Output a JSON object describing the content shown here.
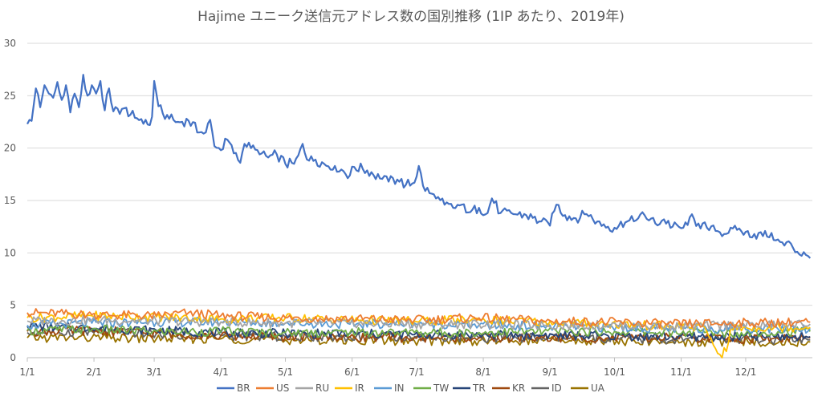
{
  "chart_data": {
    "type": "line",
    "title": "Hajime ユニーク送信元アドレス数の国別推移 (1IP あたり、2019年)",
    "xlabel": "",
    "ylabel": "",
    "ylim": [
      0,
      30
    ],
    "yticks": [
      0,
      5,
      10,
      15,
      20,
      25,
      30
    ],
    "xlim_days": [
      0,
      365
    ],
    "xticks": [
      {
        "label": "1/1",
        "day": 0
      },
      {
        "label": "2/1",
        "day": 31
      },
      {
        "label": "3/1",
        "day": 59
      },
      {
        "label": "4/1",
        "day": 90
      },
      {
        "label": "5/1",
        "day": 120
      },
      {
        "label": "6/1",
        "day": 151
      },
      {
        "label": "7/1",
        "day": 181
      },
      {
        "label": "8/1",
        "day": 212
      },
      {
        "label": "9/1",
        "day": 243
      },
      {
        "label": "10/1",
        "day": 273
      },
      {
        "label": "11/1",
        "day": 304
      },
      {
        "label": "12/1",
        "day": 334
      }
    ],
    "grid": true,
    "legend_position": "bottom",
    "series": [
      {
        "name": "BR",
        "color": "#4472C4",
        "keypoints": [
          [
            0,
            22.3
          ],
          [
            2,
            22.6
          ],
          [
            4,
            25.7
          ],
          [
            6,
            23.9
          ],
          [
            8,
            26.0
          ],
          [
            10,
            25.2
          ],
          [
            12,
            24.8
          ],
          [
            14,
            26.3
          ],
          [
            16,
            24.6
          ],
          [
            18,
            26.0
          ],
          [
            20,
            23.4
          ],
          [
            22,
            25.2
          ],
          [
            24,
            23.9
          ],
          [
            26,
            27.0
          ],
          [
            28,
            25.0
          ],
          [
            30,
            26.0
          ],
          [
            32,
            25.2
          ],
          [
            34,
            26.4
          ],
          [
            36,
            23.6
          ],
          [
            38,
            25.7
          ],
          [
            40,
            23.5
          ],
          [
            45,
            23.8
          ],
          [
            50,
            22.9
          ],
          [
            55,
            22.7
          ],
          [
            57,
            22.2
          ],
          [
            58,
            23.0
          ],
          [
            59,
            26.4
          ],
          [
            61,
            24.0
          ],
          [
            63,
            23.3
          ],
          [
            66,
            22.8
          ],
          [
            70,
            22.5
          ],
          [
            75,
            22.6
          ],
          [
            80,
            21.5
          ],
          [
            83,
            21.5
          ],
          [
            85,
            22.7
          ],
          [
            87,
            20.2
          ],
          [
            90,
            19.8
          ],
          [
            93,
            20.8
          ],
          [
            96,
            19.5
          ],
          [
            99,
            18.6
          ],
          [
            101,
            20.4
          ],
          [
            104,
            20.0
          ],
          [
            108,
            19.4
          ],
          [
            112,
            19.1
          ],
          [
            116,
            19.4
          ],
          [
            120,
            18.5
          ],
          [
            124,
            18.5
          ],
          [
            126,
            19.3
          ],
          [
            128,
            20.4
          ],
          [
            131,
            18.8
          ],
          [
            134,
            18.9
          ],
          [
            138,
            18.5
          ],
          [
            143,
            18.3
          ],
          [
            147,
            17.8
          ],
          [
            150,
            17.4
          ],
          [
            152,
            18.2
          ],
          [
            156,
            18.0
          ],
          [
            160,
            17.7
          ],
          [
            164,
            17.1
          ],
          [
            168,
            16.8
          ],
          [
            172,
            17.0
          ],
          [
            176,
            16.5
          ],
          [
            180,
            16.7
          ],
          [
            182,
            18.3
          ],
          [
            184,
            16.4
          ],
          [
            187,
            15.7
          ],
          [
            190,
            15.2
          ],
          [
            194,
            14.6
          ],
          [
            198,
            14.3
          ],
          [
            202,
            14.6
          ],
          [
            206,
            13.9
          ],
          [
            210,
            14.3
          ],
          [
            214,
            13.8
          ],
          [
            216,
            15.2
          ],
          [
            220,
            13.8
          ],
          [
            226,
            13.7
          ],
          [
            232,
            13.6
          ],
          [
            238,
            13.0
          ],
          [
            243,
            12.6
          ],
          [
            246,
            14.6
          ],
          [
            250,
            13.6
          ],
          [
            255,
            13.3
          ],
          [
            260,
            13.7
          ],
          [
            265,
            13.0
          ],
          [
            270,
            12.5
          ],
          [
            273,
            12.4
          ],
          [
            278,
            12.9
          ],
          [
            283,
            13.1
          ],
          [
            287,
            13.6
          ],
          [
            292,
            12.8
          ],
          [
            296,
            13.2
          ],
          [
            300,
            12.5
          ],
          [
            305,
            12.4
          ],
          [
            308,
            13.4
          ],
          [
            312,
            12.8
          ],
          [
            316,
            12.4
          ],
          [
            320,
            12.1
          ],
          [
            326,
            11.9
          ],
          [
            330,
            12.2
          ],
          [
            334,
            12.0
          ],
          [
            338,
            11.8
          ],
          [
            342,
            11.6
          ],
          [
            346,
            11.9
          ],
          [
            348,
            11.2
          ],
          [
            352,
            10.7
          ],
          [
            355,
            10.9
          ],
          [
            358,
            10.1
          ],
          [
            362,
            9.8
          ],
          [
            364,
            9.5
          ]
        ]
      },
      {
        "name": "US",
        "color": "#ED7D31",
        "keypoints": [
          [
            0,
            4.3
          ],
          [
            30,
            4.1
          ],
          [
            60,
            4.0
          ],
          [
            75,
            4.3
          ],
          [
            90,
            4.0
          ],
          [
            120,
            3.8
          ],
          [
            150,
            3.7
          ],
          [
            180,
            3.6
          ],
          [
            210,
            3.8
          ],
          [
            240,
            3.5
          ],
          [
            270,
            3.4
          ],
          [
            300,
            3.2
          ],
          [
            330,
            3.3
          ],
          [
            364,
            3.4
          ]
        ]
      },
      {
        "name": "RU",
        "color": "#A5A5A5",
        "keypoints": [
          [
            0,
            3.5
          ],
          [
            30,
            3.6
          ],
          [
            60,
            3.5
          ],
          [
            90,
            3.4
          ],
          [
            120,
            3.3
          ],
          [
            150,
            3.3
          ],
          [
            180,
            3.2
          ],
          [
            210,
            3.2
          ],
          [
            240,
            3.1
          ],
          [
            270,
            3.1
          ],
          [
            300,
            3.0
          ],
          [
            330,
            3.1
          ],
          [
            364,
            3.2
          ]
        ]
      },
      {
        "name": "IR",
        "color": "#FFC000",
        "keypoints": [
          [
            0,
            3.8
          ],
          [
            30,
            4.0
          ],
          [
            60,
            3.9
          ],
          [
            90,
            3.7
          ],
          [
            120,
            3.8
          ],
          [
            150,
            3.6
          ],
          [
            180,
            3.5
          ],
          [
            210,
            3.6
          ],
          [
            240,
            3.4
          ],
          [
            270,
            3.2
          ],
          [
            300,
            3.0
          ],
          [
            315,
            2.9
          ],
          [
            319,
            1.2
          ],
          [
            322,
            0.3
          ],
          [
            325,
            0.6
          ],
          [
            327,
            2.8
          ],
          [
            340,
            2.9
          ],
          [
            364,
            2.9
          ]
        ]
      },
      {
        "name": "IN",
        "color": "#5B9BD5",
        "keypoints": [
          [
            0,
            3.1
          ],
          [
            30,
            3.3
          ],
          [
            60,
            3.4
          ],
          [
            90,
            3.4
          ],
          [
            120,
            3.3
          ],
          [
            150,
            3.2
          ],
          [
            180,
            3.3
          ],
          [
            210,
            3.1
          ],
          [
            240,
            3.0
          ],
          [
            270,
            2.9
          ],
          [
            300,
            2.8
          ],
          [
            330,
            2.8
          ],
          [
            364,
            2.8
          ]
        ]
      },
      {
        "name": "TW",
        "color": "#70AD47",
        "keypoints": [
          [
            0,
            2.6
          ],
          [
            30,
            2.7
          ],
          [
            60,
            2.5
          ],
          [
            90,
            2.5
          ],
          [
            120,
            2.4
          ],
          [
            150,
            2.4
          ],
          [
            180,
            2.4
          ],
          [
            210,
            2.4
          ],
          [
            240,
            2.5
          ],
          [
            270,
            2.5
          ],
          [
            300,
            2.4
          ],
          [
            330,
            2.4
          ],
          [
            364,
            2.5
          ]
        ]
      },
      {
        "name": "TR",
        "color": "#264478",
        "keypoints": [
          [
            0,
            3.0
          ],
          [
            30,
            2.8
          ],
          [
            60,
            2.6
          ],
          [
            90,
            2.4
          ],
          [
            120,
            2.3
          ],
          [
            150,
            2.3
          ],
          [
            180,
            2.2
          ],
          [
            210,
            2.2
          ],
          [
            240,
            2.1
          ],
          [
            270,
            2.1
          ],
          [
            300,
            2.0
          ],
          [
            330,
            2.0
          ],
          [
            364,
            2.0
          ]
        ]
      },
      {
        "name": "KR",
        "color": "#9E480E",
        "keypoints": [
          [
            0,
            2.5
          ],
          [
            30,
            2.6
          ],
          [
            60,
            2.3
          ],
          [
            90,
            2.1
          ],
          [
            120,
            2.0
          ],
          [
            150,
            2.0
          ],
          [
            180,
            1.9
          ],
          [
            210,
            1.9
          ],
          [
            240,
            1.9
          ],
          [
            270,
            1.9
          ],
          [
            300,
            1.9
          ],
          [
            330,
            1.8
          ],
          [
            364,
            1.9
          ]
        ]
      },
      {
        "name": "ID",
        "color": "#636363",
        "keypoints": [
          [
            0,
            2.4
          ],
          [
            30,
            2.5
          ],
          [
            60,
            2.3
          ],
          [
            90,
            2.1
          ],
          [
            120,
            2.0
          ],
          [
            150,
            2.0
          ],
          [
            180,
            2.0
          ],
          [
            210,
            1.9
          ],
          [
            240,
            1.9
          ],
          [
            270,
            1.8
          ],
          [
            300,
            1.7
          ],
          [
            330,
            1.7
          ],
          [
            364,
            1.7
          ]
        ]
      },
      {
        "name": "UA",
        "color": "#997300",
        "keypoints": [
          [
            0,
            1.9
          ],
          [
            30,
            1.9
          ],
          [
            60,
            1.8
          ],
          [
            90,
            1.8
          ],
          [
            120,
            1.7
          ],
          [
            150,
            1.7
          ],
          [
            180,
            1.6
          ],
          [
            210,
            1.6
          ],
          [
            240,
            1.6
          ],
          [
            270,
            1.6
          ],
          [
            300,
            1.5
          ],
          [
            330,
            1.5
          ],
          [
            364,
            1.5
          ]
        ]
      }
    ]
  }
}
